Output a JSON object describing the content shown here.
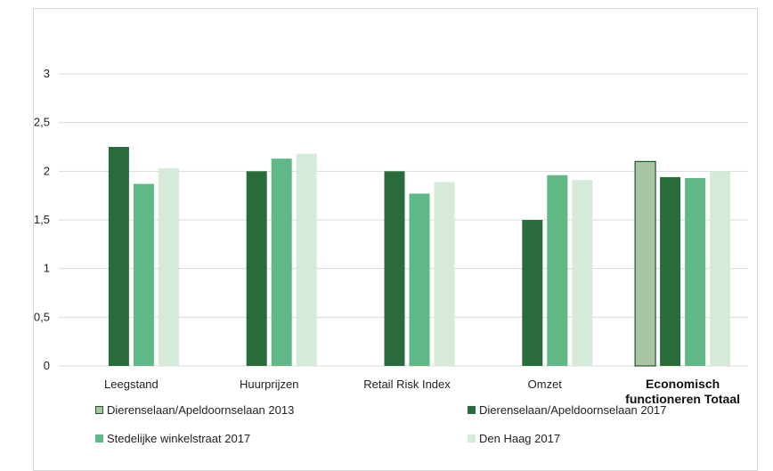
{
  "chart_data": {
    "type": "bar",
    "categories": [
      "Leegstand",
      "Huurprijzen",
      "Retail Risk Index",
      "Omzet",
      "Economisch functioneren Totaal"
    ],
    "category_lines": [
      [
        "Leegstand"
      ],
      [
        "Huurprijzen"
      ],
      [
        "Retail Risk Index"
      ],
      [
        "Omzet"
      ],
      [
        "Economisch",
        "functioneren Totaal"
      ]
    ],
    "emphasized_category": "Economisch functioneren Totaal",
    "series": [
      {
        "name": "Dierenselaan/Apeldoornselaan 2013",
        "color": "#a9c4a3",
        "values": [
          null,
          null,
          null,
          null,
          2.1
        ]
      },
      {
        "name": "Dierenselaan/Apeldoornselaan 2017",
        "color": "#2a6b3c",
        "values": [
          2.25,
          2.0,
          2.0,
          1.5,
          1.94
        ]
      },
      {
        "name": "Stedelijke winkelstraat 2017",
        "color": "#5fb885",
        "values": [
          1.87,
          2.13,
          1.77,
          1.96,
          1.93
        ]
      },
      {
        "name": "Den Haag 2017",
        "color": "#d5ead9",
        "values": [
          2.03,
          2.18,
          1.89,
          1.91,
          2.0
        ]
      }
    ],
    "ylim": [
      0,
      3.3
    ],
    "yticks": [
      "0",
      "0,5",
      "1",
      "1,5",
      "2",
      "2,5",
      "3"
    ],
    "ytick_values": [
      0,
      0.5,
      1,
      1.5,
      2,
      2.5,
      3
    ],
    "grid": true,
    "legend_position": "bottom"
  }
}
